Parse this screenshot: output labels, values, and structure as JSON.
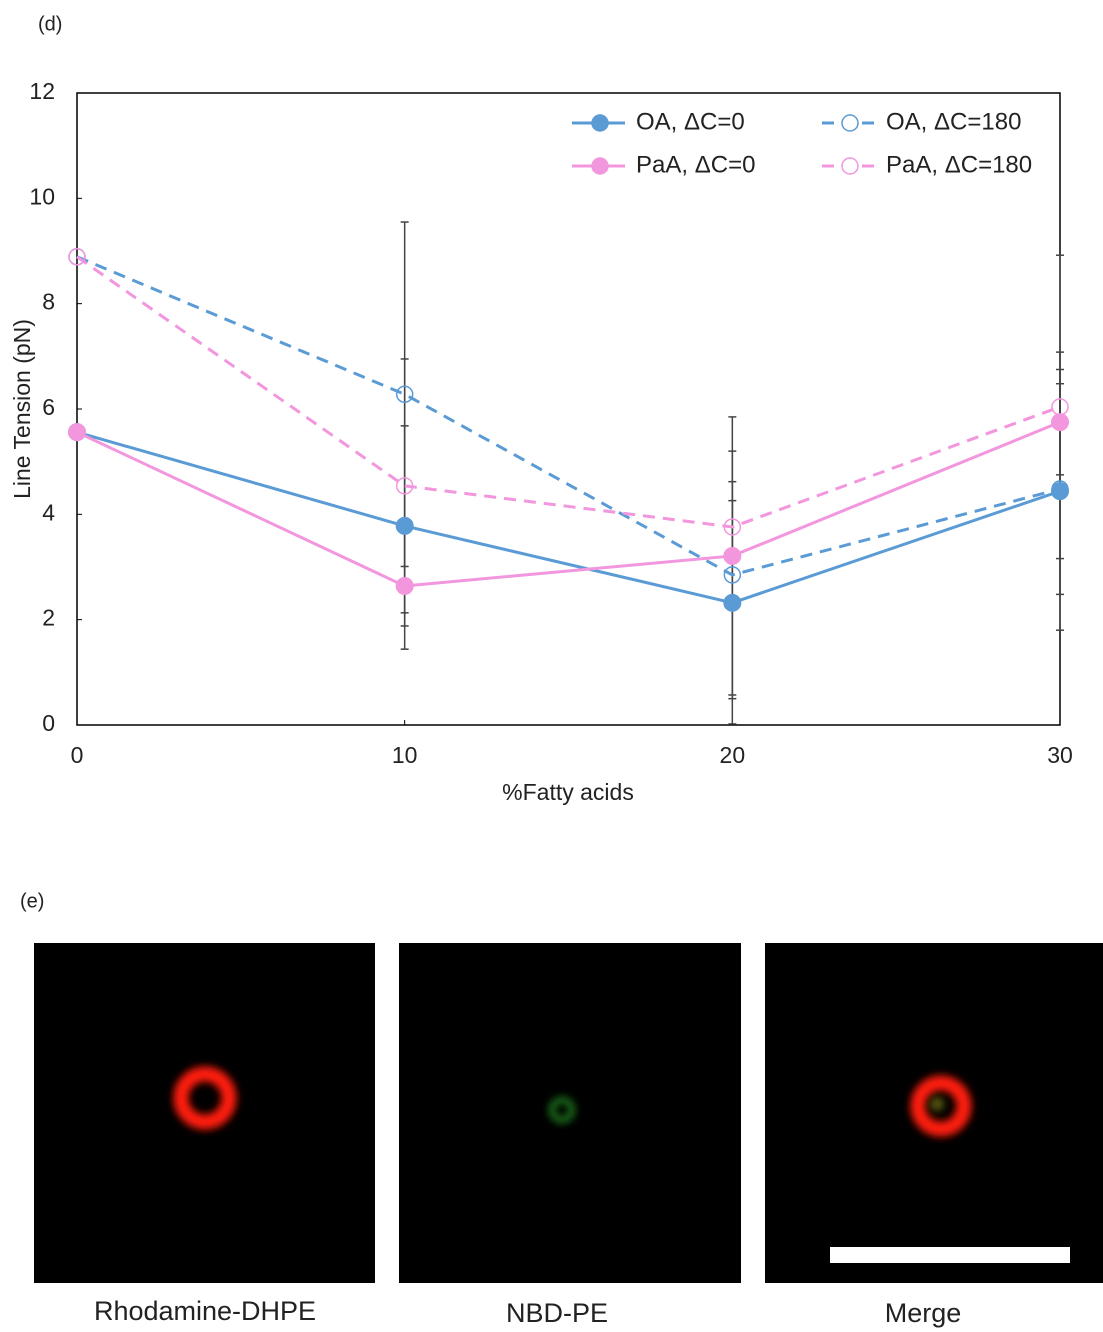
{
  "panel_d": "(d)",
  "chart_data": {
    "type": "line",
    "x_label": "%Fatty acids",
    "y_label": "Line Tension (pN)",
    "x": [
      0,
      10,
      20,
      30
    ],
    "xlim": [
      0,
      30
    ],
    "xticks": [
      0,
      10,
      20,
      30
    ],
    "ylim": [
      0,
      12
    ],
    "yticks": [
      0,
      2,
      4,
      6,
      8,
      10,
      12
    ],
    "legend": "upper right",
    "series": [
      {
        "name": "OA, ΔC=0",
        "color": "#5b9bd5",
        "dashed": false,
        "marker": "filled",
        "values": [
          5.56,
          3.78,
          2.32,
          4.44
        ],
        "errors": [
          null,
          1.9,
          2.3,
          2.64
        ]
      },
      {
        "name": "OA, ΔC=180",
        "color": "#5b9bd5",
        "dashed": true,
        "marker": "open",
        "values": [
          8.89,
          6.28,
          2.85,
          4.48
        ],
        "errors": [
          null,
          3.27,
          2.35,
          2.0
        ]
      },
      {
        "name": "PaA, ΔC=0",
        "color": "#f296de",
        "dashed": false,
        "marker": "filled",
        "values": [
          5.56,
          2.64,
          3.21,
          5.75
        ],
        "errors": [
          null,
          1.2,
          2.64,
          1.0
        ]
      },
      {
        "name": "PaA, ΔC=180",
        "color": "#f296de",
        "dashed": true,
        "marker": "open",
        "values": [
          8.89,
          4.54,
          3.76,
          6.04
        ],
        "errors": [
          null,
          2.41,
          0.5,
          2.88
        ]
      }
    ]
  },
  "panel_e": "(e)",
  "images": [
    {
      "caption": "Rhodamine-DHPE"
    },
    {
      "caption": "NBD-PE"
    },
    {
      "caption": "Merge"
    }
  ]
}
